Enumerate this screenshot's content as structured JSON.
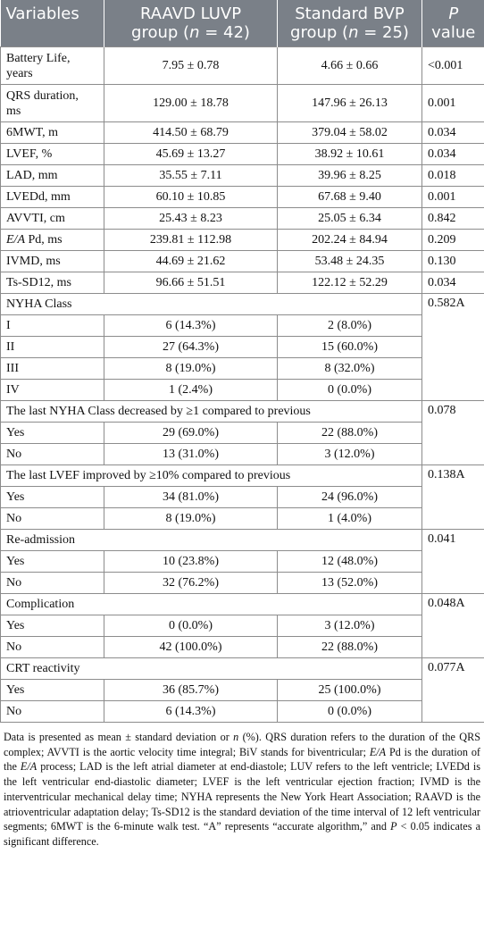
{
  "header": {
    "col1": "Variables",
    "col2_line1": "RAAVD LUVP",
    "col2_line2_pre": "group (",
    "col2_n": "n",
    "col2_line2_post": " = 42)",
    "col3_line1": "Standard BVP",
    "col3_line2_pre": "group (",
    "col3_n": "n",
    "col3_line2_post": " = 25)",
    "col4_line1": "P",
    "col4_line2": "value"
  },
  "rows": {
    "battery": {
      "line1": "Battery Life,",
      "line2": "years",
      "g1": "7.95 ± 0.78",
      "g2": "4.66 ± 0.66",
      "p": "<0.001"
    },
    "qrs": {
      "line1": "QRS duration,",
      "line2": "ms",
      "g1": "129.00 ± 18.78",
      "g2": "147.96 ± 26.13",
      "p": "0.001"
    },
    "mwt": {
      "label": "6MWT, m",
      "g1": "414.50 ± 68.79",
      "g2": "379.04 ± 58.02",
      "p": "0.034"
    },
    "lvef": {
      "label": "LVEF, %",
      "g1": "45.69 ± 13.27",
      "g2": "38.92 ± 10.61",
      "p": "0.034"
    },
    "lad": {
      "label": "LAD, mm",
      "g1": "35.55 ± 7.11",
      "g2": "39.96 ± 8.25",
      "p": "0.018"
    },
    "lvedd": {
      "label": "LVEDd, mm",
      "g1": "60.10 ± 10.85",
      "g2": "67.68 ± 9.40",
      "p": "0.001"
    },
    "avvti": {
      "label": "AVVTI, cm",
      "g1": "25.43 ± 8.23",
      "g2": "25.05 ± 6.34",
      "p": "0.842"
    },
    "eapd": {
      "label_it": "E/A",
      "label_rest": " Pd, ms",
      "g1": "239.81 ± 112.98",
      "g2": "202.24 ± 84.94",
      "p": "0.209"
    },
    "ivmd": {
      "label": "IVMD, ms",
      "g1": "44.69 ± 21.62",
      "g2": "53.48 ± 24.35",
      "p": "0.130"
    },
    "tssd": {
      "label": "Ts-SD12, ms",
      "g1": "96.66 ± 51.51",
      "g2": "122.12 ± 52.29",
      "p": "0.034"
    }
  },
  "nyha": {
    "title": "NYHA Class",
    "p": "0.582A",
    "rows": [
      {
        "label": "I",
        "g1": "6 (14.3%)",
        "g2": "2 (8.0%)"
      },
      {
        "label": "II",
        "g1": "27 (64.3%)",
        "g2": "15 (60.0%)"
      },
      {
        "label": "III",
        "g1": "8 (19.0%)",
        "g2": "8 (32.0%)"
      },
      {
        "label": "IV",
        "g1": "1 (2.4%)",
        "g2": "0 (0.0%)"
      }
    ]
  },
  "nyha_dec": {
    "title": "The last NYHA Class decreased by ≥1 compared to previous",
    "p": "0.078",
    "rows": [
      {
        "label": "Yes",
        "g1": "29 (69.0%)",
        "g2": "22 (88.0%)"
      },
      {
        "label": "No",
        "g1": "13 (31.0%)",
        "g2": "3 (12.0%)"
      }
    ]
  },
  "lvef_imp": {
    "title": "The last LVEF improved by ≥10% compared to previous",
    "p": "0.138A",
    "rows": [
      {
        "label": "Yes",
        "g1": "34 (81.0%)",
        "g2": "24 (96.0%)"
      },
      {
        "label": "No",
        "g1": "8 (19.0%)",
        "g2": "1 (4.0%)"
      }
    ]
  },
  "readm": {
    "title": "Re-admission",
    "p": "0.041",
    "rows": [
      {
        "label": "Yes",
        "g1": "10 (23.8%)",
        "g2": "12 (48.0%)"
      },
      {
        "label": "No",
        "g1": "32 (76.2%)",
        "g2": "13 (52.0%)"
      }
    ]
  },
  "compl": {
    "title": "Complication",
    "p": "0.048A",
    "rows": [
      {
        "label": "Yes",
        "g1": "0 (0.0%)",
        "g2": "3 (12.0%)"
      },
      {
        "label": "No",
        "g1": "42 (100.0%)",
        "g2": "22 (88.0%)"
      }
    ]
  },
  "crt": {
    "title": "CRT reactivity",
    "p": "0.077A",
    "rows": [
      {
        "label": "Yes",
        "g1": "36 (85.7%)",
        "g2": "25 (100.0%)"
      },
      {
        "label": "No",
        "g1": "6 (14.3%)",
        "g2": "0 (0.0%)"
      }
    ]
  },
  "note": {
    "s1": "Data is presented as mean ± standard deviation or ",
    "s1_it": "n",
    "s2": " (%). QRS duration refers to the duration of the QRS complex; AVVTI is the aortic velocity time integral; BiV stands for biventricular; ",
    "s2_it": "E/A",
    "s3": " Pd is the duration of the ",
    "s3_it": "E/A",
    "s4": " process; LAD is the left atrial diameter at end-diastole; LUV refers to the left ventricle; LVEDd is the left ventricular end-diastolic diameter; LVEF is the left ventricular ejection fraction; IVMD is the interventricular mechanical delay time; NYHA represents the New York Heart Association; RAAVD is the atrioventricular adaptation delay; Ts-SD12 is the standard deviation of the time interval of 12 left ventricular segments; 6MWT is the 6-minute walk test. “A” represents “accurate algorithm,” and ",
    "s4_it": "P",
    "s5": " < 0.05 indicates a significant difference."
  }
}
